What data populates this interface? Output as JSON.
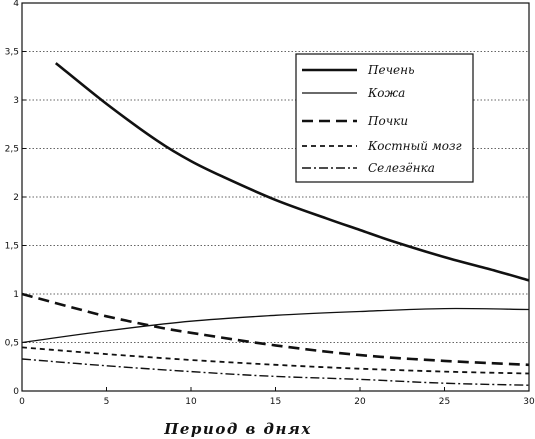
{
  "chart_data": {
    "type": "line",
    "title": "",
    "xlabel": "Период в днях",
    "ylabel": "",
    "xlim": [
      0,
      30
    ],
    "ylim": [
      0,
      4
    ],
    "x_ticks": [
      "0",
      "5",
      "10",
      "15",
      "20",
      "25",
      "30"
    ],
    "y_ticks": [
      "0",
      "0,5",
      "1",
      "1,5",
      "2",
      "2,5",
      "3",
      "3,5",
      "4"
    ],
    "grid": "horizontal dotted",
    "legend_position": "top-right",
    "series": [
      {
        "name": "Печень",
        "style": "thick-solid",
        "x": [
          2,
          5,
          8,
          10,
          12,
          15,
          18,
          20,
          22,
          25,
          28,
          30
        ],
        "y": [
          3.38,
          2.96,
          2.58,
          2.37,
          2.2,
          1.97,
          1.78,
          1.66,
          1.54,
          1.38,
          1.24,
          1.14
        ]
      },
      {
        "name": "Кожа",
        "style": "thin-solid",
        "x": [
          0,
          5,
          10,
          15,
          20,
          25,
          30
        ],
        "y": [
          0.5,
          0.62,
          0.72,
          0.78,
          0.82,
          0.85,
          0.84
        ]
      },
      {
        "name": "Почки",
        "style": "long-dash",
        "x": [
          0,
          3,
          5,
          8,
          10,
          15,
          20,
          25,
          30
        ],
        "y": [
          1.0,
          0.86,
          0.77,
          0.66,
          0.6,
          0.47,
          0.37,
          0.31,
          0.27
        ]
      },
      {
        "name": "Костный мозг",
        "style": "short-dash",
        "x": [
          0,
          5,
          10,
          15,
          20,
          25,
          30
        ],
        "y": [
          0.45,
          0.38,
          0.32,
          0.27,
          0.23,
          0.2,
          0.18
        ]
      },
      {
        "name": "Селезёнка",
        "style": "dash-dot",
        "x": [
          0,
          5,
          10,
          15,
          20,
          25,
          30
        ],
        "y": [
          0.33,
          0.26,
          0.2,
          0.15,
          0.12,
          0.08,
          0.06
        ]
      }
    ]
  }
}
